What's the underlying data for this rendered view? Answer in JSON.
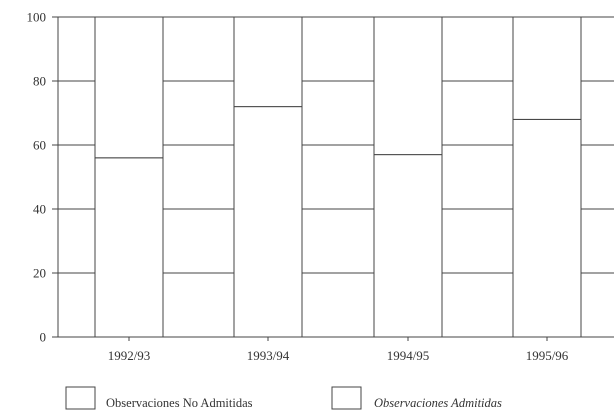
{
  "chart_data": {
    "type": "bar",
    "stacked": true,
    "categories": [
      "1992/93",
      "1993/94",
      "1994/95",
      "1995/96"
    ],
    "series": [
      {
        "name": "Observaciones No Admitidas",
        "values": [
          56,
          72,
          57,
          68
        ]
      },
      {
        "name": "Observaciones Admitidas",
        "values": [
          44,
          28,
          43,
          32
        ]
      }
    ],
    "yticks": [
      0,
      20,
      40,
      60,
      80,
      100
    ],
    "ylim": [
      0,
      100
    ],
    "grid": true,
    "legend_position": "bottom",
    "colors": {
      "series_fill": "#ffffff",
      "series_stroke": "#444444",
      "grid": "#444444"
    }
  }
}
